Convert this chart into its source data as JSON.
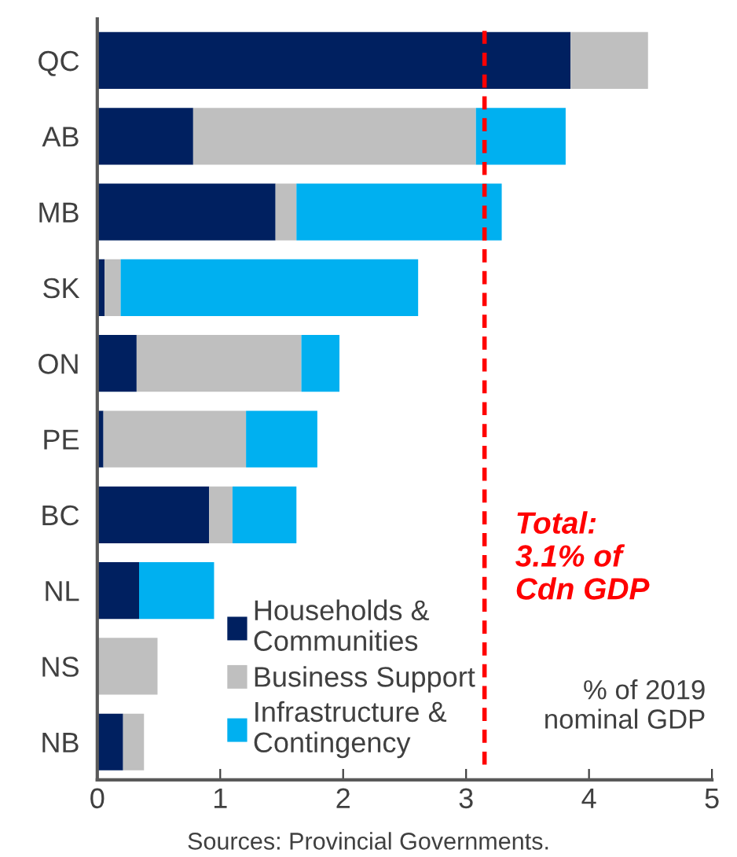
{
  "chart_data": {
    "type": "bar",
    "orientation": "horizontal",
    "stacked": true,
    "categories": [
      "QC",
      "AB",
      "MB",
      "SK",
      "ON",
      "PE",
      "BC",
      "NL",
      "NS",
      "NB"
    ],
    "series": [
      {
        "name": "Households &\nCommunities",
        "color": "#002060",
        "values": [
          3.85,
          0.78,
          1.45,
          0.06,
          0.32,
          0.05,
          0.91,
          0.34,
          0,
          0.21
        ]
      },
      {
        "name": "Business Support",
        "color": "#bfbfbf",
        "values": [
          0.63,
          2.3,
          0.17,
          0.13,
          1.34,
          1.16,
          0.19,
          0,
          0.49,
          0.17
        ]
      },
      {
        "name": "Infrastructure &\nContingency",
        "color": "#00b0f0",
        "values": [
          0,
          0.73,
          1.67,
          2.42,
          0.31,
          0.58,
          0.52,
          0.61,
          0,
          0
        ]
      }
    ],
    "xlim": [
      0,
      5
    ],
    "xticks": [
      0,
      1,
      2,
      3,
      4,
      5
    ],
    "ref_lines": [
      {
        "axis": "x",
        "value": 3.15,
        "label": "Total:\n3.1% of\nCdn GDP",
        "color": "#ff0000",
        "line_style": "dashed"
      }
    ],
    "annotations": [
      "% of 2019\nnominal GDP",
      "Sources: Provincial Governments."
    ],
    "legend": "bottom",
    "grid": false
  }
}
